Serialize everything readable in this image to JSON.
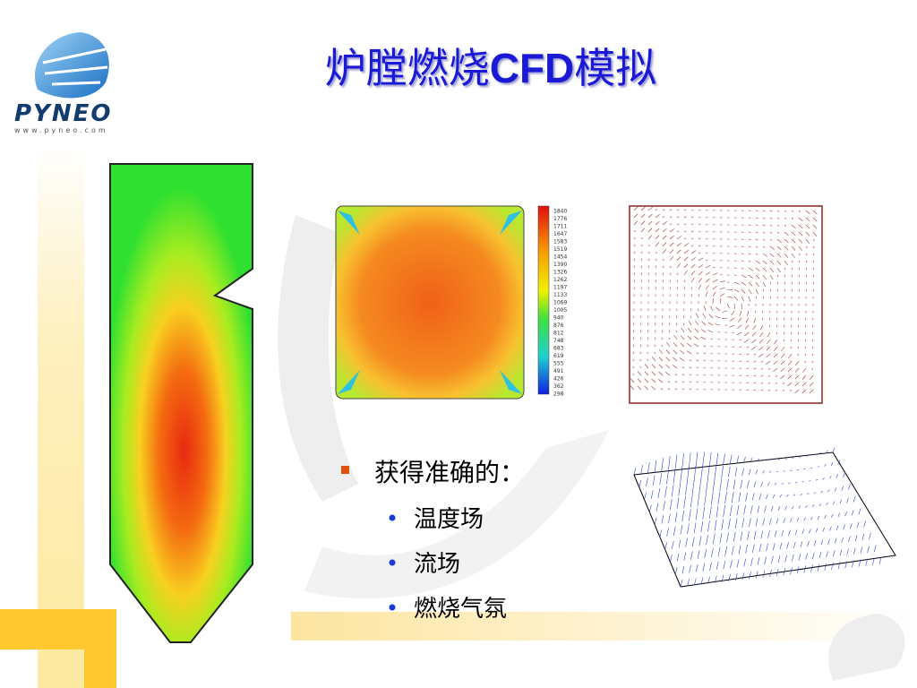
{
  "logo": {
    "name": "PYNEO",
    "url": "www.pyneo.com"
  },
  "title": [
    "炉膛燃烧",
    "CFD",
    "模拟"
  ],
  "colorbar_labels": [
    1840,
    1776,
    1711,
    1647,
    1583,
    1519,
    1454,
    1390,
    1326,
    1262,
    1197,
    1133,
    1069,
    1005,
    940,
    876,
    812,
    748,
    683,
    619,
    555,
    491,
    426,
    362,
    298
  ],
  "bullets": {
    "main": "获得准确的：",
    "items": [
      "温度场",
      "流场",
      "燃烧气氛"
    ]
  }
}
